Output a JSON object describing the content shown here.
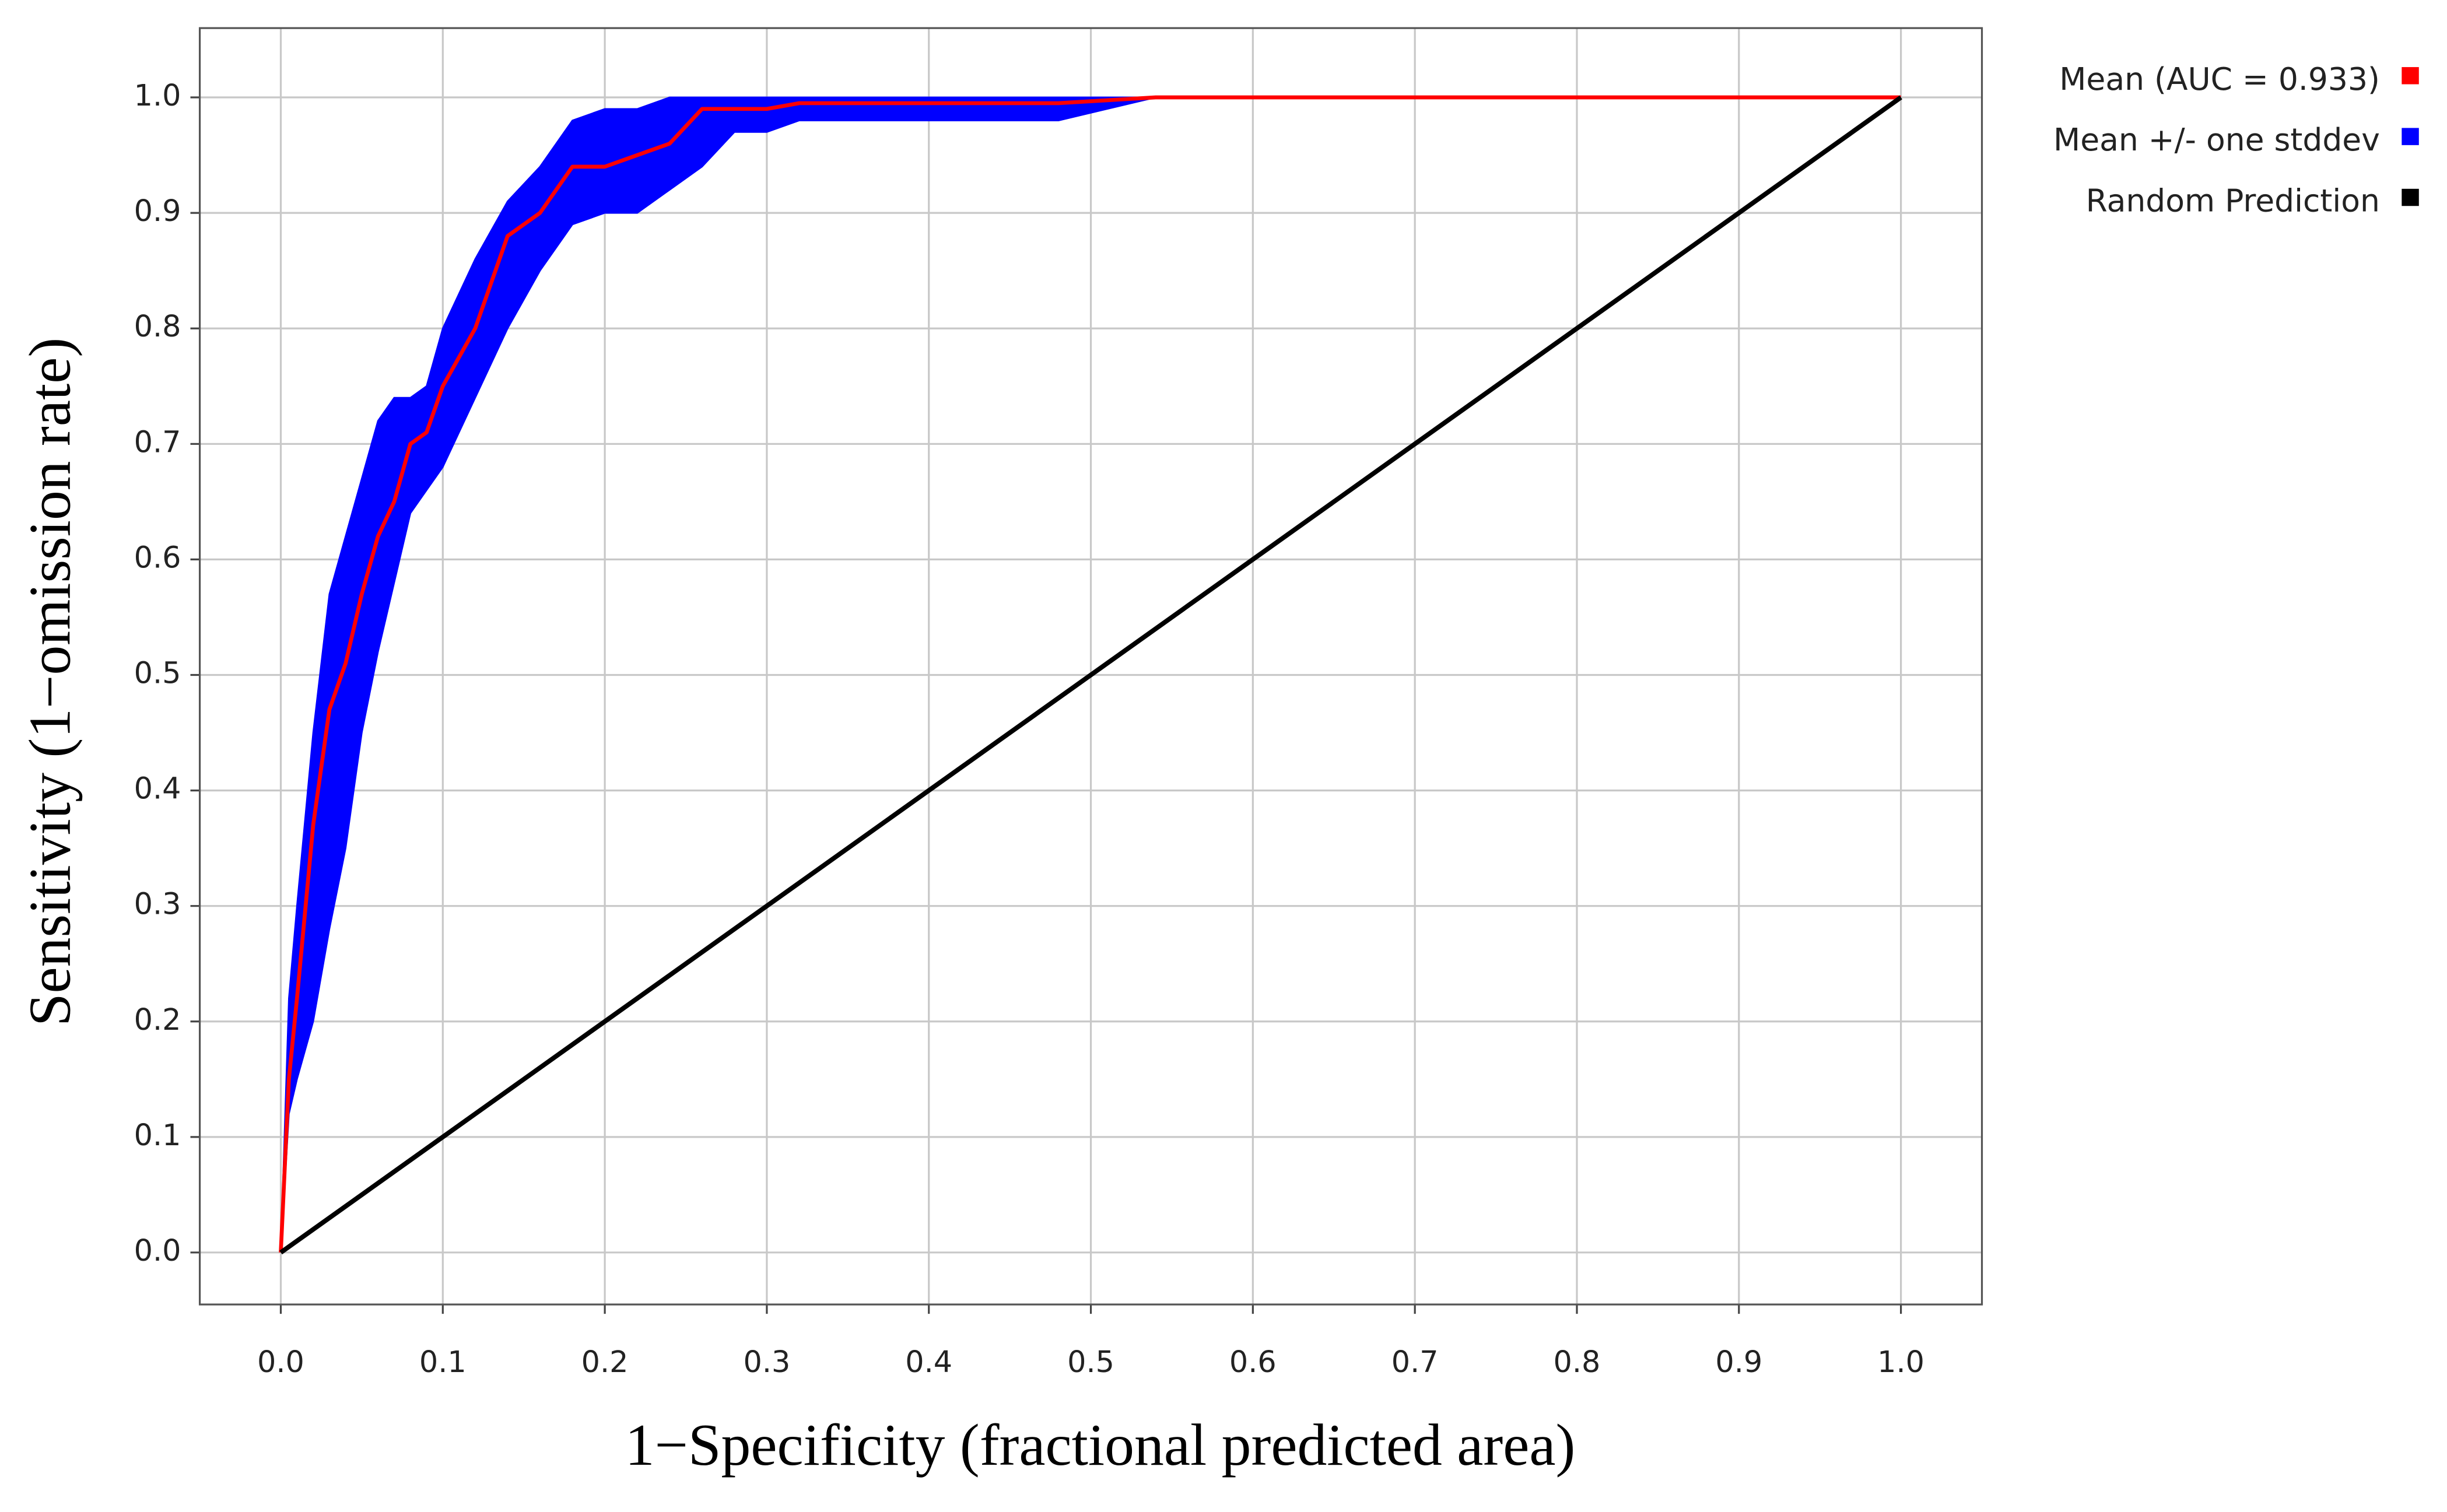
{
  "chart_data": {
    "type": "line",
    "x_label": "1−Specificity (fractional predicted area)",
    "y_label": "Sensitivity (1−omission rate)",
    "x": [
      0,
      0.005,
      0.01,
      0.02,
      0.03,
      0.04,
      0.05,
      0.06,
      0.07,
      0.08,
      0.09,
      0.1,
      0.12,
      0.14,
      0.16,
      0.18,
      0.2,
      0.22,
      0.24,
      0.26,
      0.28,
      0.3,
      0.32,
      0.48,
      0.54,
      1.0
    ],
    "series": [
      {
        "name": "Mean (AUC = 0.933)",
        "color": "#ff0000",
        "values": [
          0,
          0.15,
          0.22,
          0.37,
          0.47,
          0.51,
          0.57,
          0.62,
          0.65,
          0.7,
          0.71,
          0.75,
          0.8,
          0.88,
          0.9,
          0.94,
          0.94,
          0.95,
          0.96,
          0.99,
          0.99,
          0.99,
          0.995,
          0.995,
          1,
          1
        ]
      },
      {
        "name": "Mean +/- one stddev",
        "color": "#0000ff",
        "upper": [
          0,
          0.22,
          0.3,
          0.45,
          0.57,
          0.62,
          0.67,
          0.72,
          0.74,
          0.74,
          0.75,
          0.8,
          0.86,
          0.91,
          0.94,
          0.98,
          0.99,
          0.99,
          1,
          1,
          1,
          1,
          1,
          1,
          1,
          1
        ],
        "lower": [
          0,
          0.12,
          0.15,
          0.2,
          0.28,
          0.35,
          0.45,
          0.52,
          0.58,
          0.64,
          0.66,
          0.68,
          0.74,
          0.8,
          0.85,
          0.89,
          0.9,
          0.9,
          0.92,
          0.94,
          0.97,
          0.97,
          0.98,
          0.98,
          1,
          1
        ]
      },
      {
        "name": "Random Prediction",
        "color": "#000000",
        "x": [
          0,
          1
        ],
        "values": [
          0,
          1
        ]
      }
    ],
    "xlim": [
      -0.05,
      1.05
    ],
    "ylim": [
      -0.045,
      1.06
    ],
    "xticks": [
      {
        "value": 0,
        "label": "0.0"
      },
      0.1,
      0.2,
      0.3,
      0.4,
      0.5,
      0.6,
      0.7,
      0.8,
      0.9,
      {
        "value": 1,
        "label": "1.0"
      }
    ],
    "yticks": [
      {
        "value": 0,
        "label": "0.0"
      },
      0.1,
      0.2,
      0.3,
      0.4,
      0.5,
      0.6,
      0.7,
      0.8,
      0.9,
      {
        "value": 1,
        "label": "1.0"
      }
    ],
    "grid": true,
    "legend": "right"
  }
}
